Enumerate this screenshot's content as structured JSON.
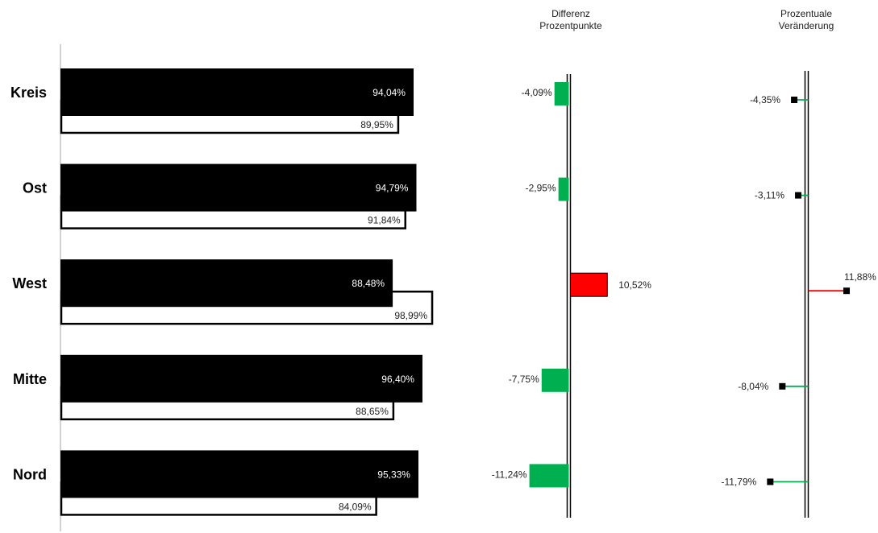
{
  "chart_data": [
    {
      "type": "bar",
      "categories": [
        "Kreis",
        "Ost",
        "West",
        "Mitte",
        "Nord"
      ],
      "series": [
        {
          "values": [
            94.04,
            94.79,
            88.48,
            96.4,
            95.33
          ],
          "labels": [
            "94,04%",
            "94,79%",
            "88,48%",
            "96,40%",
            "95,33%"
          ]
        },
        {
          "values": [
            89.95,
            91.84,
            98.99,
            88.65,
            84.09
          ],
          "labels": [
            "89,95%",
            "91,84%",
            "98,99%",
            "88,65%",
            "84,09%"
          ]
        }
      ],
      "xlim": [
        0,
        100
      ],
      "colors": {
        "filled": "#000000",
        "outline": "#000000"
      }
    },
    {
      "type": "bar",
      "title": "Differenz\nProzentpunkte",
      "title_lines": [
        "Differenz",
        "Prozentpunkte"
      ],
      "categories": [
        "Kreis",
        "Ost",
        "West",
        "Mitte",
        "Nord"
      ],
      "values": [
        -4.09,
        -2.95,
        10.52,
        -7.75,
        -11.24
      ],
      "labels": [
        "-4,09%",
        "-2,95%",
        "10,52%",
        "-7,75%",
        "-11,24%"
      ],
      "colors": {
        "negative": "#00b050",
        "positive": "#ff0000"
      }
    },
    {
      "type": "scatter",
      "title": "Prozentuale\nVeränderung",
      "title_lines": [
        "Prozentuale",
        "Veränderung"
      ],
      "categories": [
        "Kreis",
        "Ost",
        "West",
        "Mitte",
        "Nord"
      ],
      "values": [
        -4.35,
        -3.11,
        11.88,
        -8.04,
        -11.79
      ],
      "labels": [
        "-4,35%",
        "-3,11%",
        "11,88%",
        "-8,04%",
        "-11,79%"
      ],
      "colors": {
        "negative": "#00b050",
        "positive": "#ff0000",
        "marker": "#000000"
      }
    }
  ]
}
